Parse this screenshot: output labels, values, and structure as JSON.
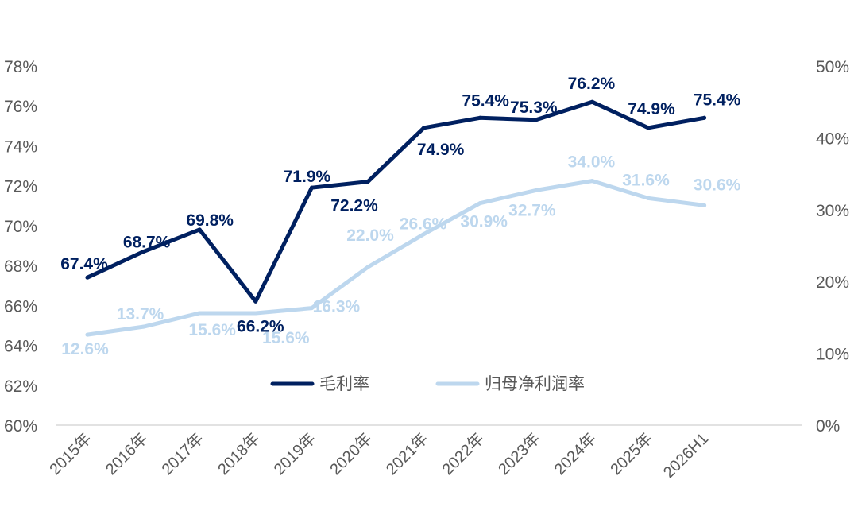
{
  "chart_data": {
    "type": "line",
    "categories": [
      "2015年",
      "2016年",
      "2017年",
      "2018年",
      "2019年",
      "2020年",
      "2021年",
      "2022年",
      "2023年",
      "2024年",
      "2025年",
      "2026H1"
    ],
    "series": [
      {
        "name": "毛利率",
        "axis": "left",
        "color": "#002060",
        "values": [
          67.4,
          68.7,
          69.8,
          66.2,
          71.9,
          72.2,
          74.9,
          75.4,
          75.3,
          76.2,
          74.9,
          75.4
        ],
        "labels": [
          "67.4%",
          "68.7%",
          "69.8%",
          "66.2%",
          "71.9%",
          "72.2%",
          "74.9%",
          "75.4%",
          "75.3%",
          "76.2%",
          "74.9%",
          "75.4%"
        ]
      },
      {
        "name": "归母净利润率",
        "axis": "right",
        "color": "#BDD7EE",
        "values": [
          12.6,
          13.7,
          15.6,
          15.6,
          16.3,
          22.0,
          26.6,
          30.9,
          32.7,
          34.0,
          31.6,
          30.6
        ],
        "labels": [
          "12.6%",
          "13.7%",
          "15.6%",
          "15.6%",
          "16.3%",
          "22.0%",
          "26.6%",
          "30.9%",
          "32.7%",
          "34.0%",
          "31.6%",
          "30.6%"
        ]
      }
    ],
    "y_left": {
      "min": 60,
      "max": 78,
      "ticks": [
        "60%",
        "62%",
        "64%",
        "66%",
        "68%",
        "70%",
        "72%",
        "74%",
        "76%",
        "78%"
      ]
    },
    "y_right": {
      "min": 0,
      "max": 50,
      "ticks": [
        "0%",
        "10%",
        "20%",
        "30%",
        "40%",
        "50%"
      ]
    },
    "legend_position": "center-bottom inside plot",
    "grid": false
  }
}
